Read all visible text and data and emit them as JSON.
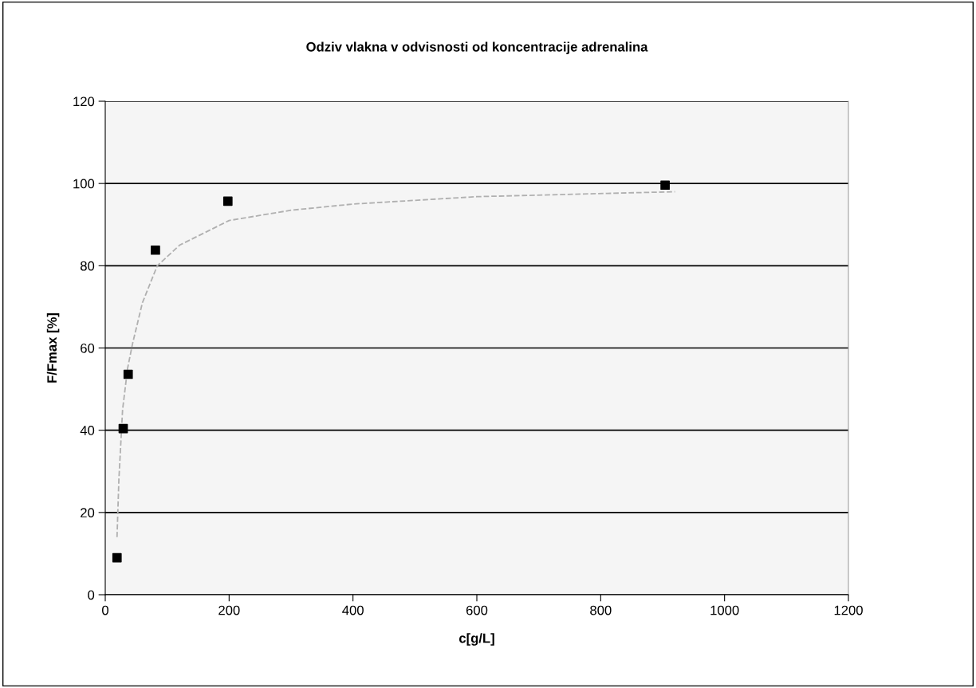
{
  "chart_data": {
    "type": "scatter",
    "title": "Odziv vlakna v odvisnosti od koncentracije adrenalina",
    "xlabel": "c[g/L]",
    "ylabel": "F/Fmax [%]",
    "series": [
      {
        "color": "#000000",
        "marker": "square",
        "x": [
          19,
          29,
          37,
          81,
          198,
          904
        ],
        "values": [
          9,
          40.4,
          53.6,
          83.8,
          95.7,
          99.6
        ]
      },
      {
        "type": "line",
        "color": "#b0b0b0",
        "line_style": "dashed",
        "x": [
          19,
          22,
          28,
          36,
          44,
          60,
          84,
          120,
          200,
          300,
          400,
          600,
          920
        ],
        "values": [
          14,
          28,
          45,
          55,
          61,
          71,
          80,
          85,
          91,
          93.5,
          95,
          96.8,
          98
        ]
      }
    ],
    "xlim": [
      0,
      1200
    ],
    "xticks": [
      0,
      200,
      400,
      600,
      800,
      1000,
      1200
    ],
    "ylim": [
      0,
      120
    ],
    "yticks": [
      0,
      20,
      40,
      60,
      80,
      100,
      120
    ],
    "grid": "y",
    "legend": false
  }
}
